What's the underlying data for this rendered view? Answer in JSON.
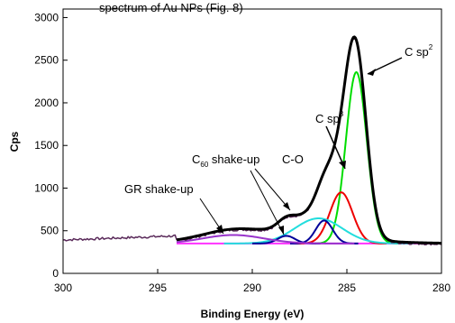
{
  "top_text": "spectrum of Au NPs (Fig. 8)",
  "chart_data": {
    "type": "line",
    "xlabel": "Binding Energy (eV)",
    "ylabel": "Cps",
    "xlim": [
      300,
      280
    ],
    "ylim": [
      0,
      3100
    ],
    "x_reversed": true,
    "xticks": [
      300,
      295,
      290,
      285,
      280
    ],
    "yticks": [
      0,
      500,
      1000,
      1500,
      2000,
      2500,
      3000
    ],
    "grid": false,
    "series": [
      {
        "name": "C sp2",
        "color": "#00dd00",
        "type": "gaussian",
        "center": 284.5,
        "sigma": 0.55,
        "amplitude": 2010,
        "baseline": "shirley"
      },
      {
        "name": "C sp3",
        "color": "#ee0000",
        "type": "gaussian",
        "center": 285.3,
        "sigma": 0.6,
        "amplitude": 600,
        "baseline": "shirley"
      },
      {
        "name": "C-O",
        "color": "#22dddd",
        "type": "gaussian",
        "center": 286.5,
        "sigma": 1.25,
        "amplitude": 295,
        "baseline": "shirley"
      },
      {
        "name": "C60 shake-up (1)",
        "color": "#000099",
        "type": "gaussian",
        "center": 286.2,
        "sigma": 0.45,
        "amplitude": 270,
        "baseline": "shirley"
      },
      {
        "name": "C60 shake-up (2)",
        "color": "#000099",
        "type": "gaussian",
        "center": 288.2,
        "sigma": 0.45,
        "amplitude": 90,
        "baseline": "shirley"
      },
      {
        "name": "GR shake-up",
        "color": "#9933cc",
        "type": "gaussian",
        "center": 291.0,
        "sigma": 1.6,
        "amplitude": 100,
        "baseline": "shirley"
      },
      {
        "name": "Background",
        "color": "#ff33ff",
        "type": "shirley",
        "low_be_level": 350,
        "high_be_level": 355,
        "xrange": [
          294,
          280
        ]
      },
      {
        "name": "Envelope fit",
        "color": "#000000",
        "type": "sum",
        "xrange": [
          294,
          280
        ]
      },
      {
        "name": "Raw data",
        "color": "#5a2a5a",
        "type": "measured",
        "pre_edge_level": 440,
        "xrange": [
          300,
          280
        ]
      }
    ],
    "annotations": [
      {
        "text": "C sp",
        "sup": "2",
        "target_series": "C sp2"
      },
      {
        "text": "C sp",
        "sup": "3",
        "target_series": "C sp3"
      },
      {
        "text": "C-O",
        "target_series": "C-O"
      },
      {
        "text": "C",
        "sub": "60",
        "rest": " shake-up",
        "target_series": "C60 shake-up"
      },
      {
        "text": "GR shake-up",
        "target_series": "GR shake-up"
      }
    ]
  }
}
